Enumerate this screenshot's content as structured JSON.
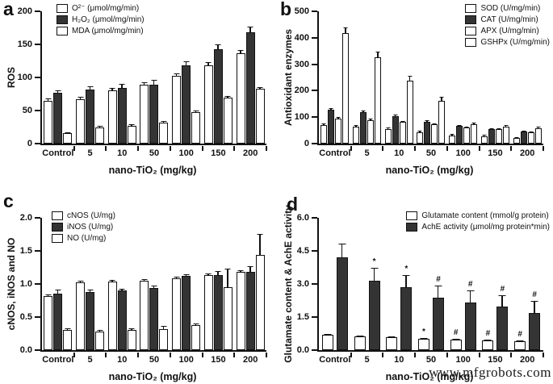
{
  "figure": {
    "watermark": "www.mfgrobots.com"
  },
  "chart_data": [
    {
      "type": "bar",
      "letter": "a",
      "ylabel": "ROS",
      "xlabel": "nano-TiO₂ (mg/kg)",
      "ylim": [
        0,
        200
      ],
      "yticks": [
        "0",
        "50",
        "100",
        "150",
        "200"
      ],
      "categories": [
        "Control",
        "5",
        "10",
        "50",
        "100",
        "150",
        "200"
      ],
      "legend_pos": "top-left",
      "grid": false,
      "series": [
        {
          "name": "O²⁻ (μmol/mg/min)",
          "fill": "#ffffff",
          "values": [
            65,
            67,
            80,
            89,
            103,
            118,
            137
          ],
          "errors": [
            4,
            4,
            4,
            4,
            4,
            5,
            5
          ],
          "annotations": [
            "",
            "",
            "",
            "",
            "",
            "",
            ""
          ]
        },
        {
          "name": "H₂O₂ (μmol/mg/min)",
          "fill": "#343434",
          "values": [
            77,
            82,
            84,
            89,
            118,
            143,
            168
          ],
          "errors": [
            4,
            5,
            6,
            7,
            6,
            7,
            8
          ],
          "annotations": [
            "",
            "",
            "",
            "",
            "",
            "",
            ""
          ]
        },
        {
          "name": "MDA (μmol/mg/min)",
          "fill": "#ffffff",
          "values": [
            16,
            24,
            27,
            32,
            48,
            69,
            83
          ],
          "errors": [
            1,
            2,
            2,
            2,
            2,
            3,
            3
          ],
          "annotations": [
            "",
            "",
            "",
            "",
            "",
            "",
            ""
          ]
        }
      ]
    },
    {
      "type": "bar",
      "letter": "b",
      "ylabel": "Antioxidant enzymes",
      "xlabel": "nano-TiO₂ (mg/kg)",
      "ylim": [
        0,
        500
      ],
      "yticks": [
        "0",
        "100",
        "200",
        "300",
        "400",
        "500"
      ],
      "categories": [
        "Control",
        "5",
        "10",
        "50",
        "100",
        "150",
        "200"
      ],
      "legend_pos": "top-right",
      "grid": false,
      "series": [
        {
          "name": "SOD (U/mg/min)",
          "fill": "#ffffff",
          "values": [
            70,
            63,
            54,
            42,
            30,
            26,
            22
          ],
          "errors": [
            6,
            5,
            5,
            5,
            5,
            5,
            4
          ],
          "annotations": [
            "",
            "",
            "",
            "",
            "",
            "",
            ""
          ]
        },
        {
          "name": "CAT (U/mg/min)",
          "fill": "#343434",
          "values": [
            127,
            118,
            105,
            82,
            66,
            56,
            45
          ],
          "errors": [
            7,
            7,
            6,
            5,
            4,
            4,
            4
          ],
          "annotations": [
            "",
            "",
            "",
            "",
            "",
            "",
            ""
          ]
        },
        {
          "name": "APX (U/mg/min)",
          "fill": "#ffffff",
          "values": [
            95,
            87,
            83,
            72,
            62,
            54,
            43
          ],
          "errors": [
            6,
            5,
            4,
            4,
            4,
            4,
            4
          ],
          "annotations": [
            "",
            "",
            "",
            "",
            "",
            "",
            ""
          ]
        },
        {
          "name": "GSHPx (U/mg/min)",
          "fill": "#ffffff",
          "values": [
            417,
            325,
            238,
            162,
            72,
            65,
            57
          ],
          "errors": [
            22,
            22,
            18,
            15,
            7,
            5,
            5
          ],
          "annotations": [
            "",
            "",
            "",
            "",
            "",
            "",
            ""
          ]
        }
      ]
    },
    {
      "type": "bar",
      "letter": "c",
      "ylabel": "cNOS, iNOS and NO",
      "xlabel": "nano-TiO₂ (mg/kg)",
      "ylim": [
        0,
        2
      ],
      "yticks": [
        "0.0",
        "0.5",
        "1.0",
        "1.5",
        "2.0"
      ],
      "categories": [
        "Control",
        "5",
        "10",
        "50",
        "100",
        "150",
        "200"
      ],
      "legend_pos": "top-left",
      "grid": false,
      "series": [
        {
          "name": "cNOS (U/mg)",
          "fill": "#ffffff",
          "values": [
            0.82,
            1.02,
            1.04,
            1.05,
            1.08,
            1.14,
            1.18
          ],
          "errors": [
            0.03,
            0.03,
            0.03,
            0.02,
            0.02,
            0.03,
            0.02
          ],
          "annotations": [
            "",
            "",
            "",
            "",
            "",
            "",
            ""
          ]
        },
        {
          "name": "iNOS (U/mg)",
          "fill": "#343434",
          "values": [
            0.85,
            0.88,
            0.9,
            0.94,
            1.12,
            1.13,
            1.18
          ],
          "errors": [
            0.06,
            0.04,
            0.03,
            0.04,
            0.03,
            0.06,
            0.08
          ],
          "annotations": [
            "",
            "",
            "",
            "",
            "",
            "",
            ""
          ]
        },
        {
          "name": "NO (U/mg)",
          "fill": "#ffffff",
          "values": [
            0.31,
            0.28,
            0.3,
            0.32,
            0.38,
            0.95,
            1.44
          ],
          "errors": [
            0.02,
            0.03,
            0.02,
            0.05,
            0.03,
            0.28,
            0.32
          ],
          "annotations": [
            "",
            "",
            "",
            "",
            "",
            "",
            ""
          ]
        }
      ]
    },
    {
      "type": "bar",
      "letter": "d",
      "ylabel": "Glutamate content & AchE activity",
      "xlabel": "nano-TiO₂ (mg/kg)",
      "ylim": [
        0,
        6
      ],
      "yticks": [
        "0.0",
        "1.5",
        "3.0",
        "4.5",
        "6.0"
      ],
      "categories": [
        "Control",
        "5",
        "10",
        "50",
        "100",
        "150",
        "200"
      ],
      "legend_pos": "top-right",
      "grid": false,
      "series": [
        {
          "name": "Glutamate content (mmol/g protein)",
          "fill": "#ffffff",
          "values": [
            0.68,
            0.62,
            0.6,
            0.53,
            0.48,
            0.43,
            0.4
          ],
          "errors": [
            0.04,
            0.04,
            0.04,
            0.05,
            0.05,
            0.05,
            0.05
          ],
          "annotations": [
            "",
            "",
            "",
            "*",
            "#",
            "#",
            "#"
          ]
        },
        {
          "name": "AchE activity (μmol/mg protein*min)",
          "fill": "#343434",
          "values": [
            4.2,
            3.15,
            2.85,
            2.37,
            2.15,
            1.97,
            1.67
          ],
          "errors": [
            0.62,
            0.6,
            0.55,
            0.55,
            0.55,
            0.5,
            0.55
          ],
          "annotations": [
            "",
            "*",
            "*",
            "#",
            "#",
            "#",
            "#"
          ]
        }
      ]
    }
  ]
}
